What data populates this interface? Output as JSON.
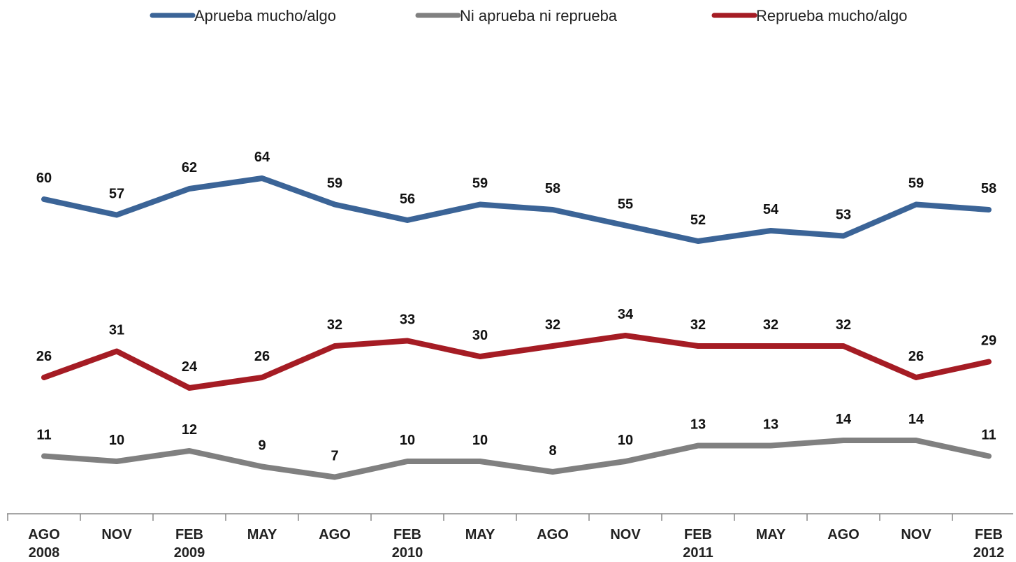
{
  "chart_data": {
    "type": "line",
    "categories": [
      "AGO\n2008",
      "NOV",
      "FEB\n2009",
      "MAY",
      "AGO",
      "FEB\n2010",
      "MAY",
      "AGO",
      "NOV",
      "FEB\n2011",
      "MAY",
      "AGO",
      "NOV",
      "FEB\n2012"
    ],
    "series": [
      {
        "name": "Aprueba mucho/algo",
        "color": "#3b6497",
        "values": [
          60,
          57,
          62,
          64,
          59,
          56,
          59,
          58,
          55,
          52,
          54,
          53,
          59,
          58
        ]
      },
      {
        "name": "Ni aprueba ni reprueba",
        "color": "#808080",
        "values": [
          11,
          10,
          12,
          9,
          7,
          10,
          10,
          8,
          10,
          13,
          13,
          14,
          14,
          11
        ]
      },
      {
        "name": "Reprueba mucho/algo",
        "color": "#a51c24",
        "values": [
          26,
          31,
          24,
          26,
          32,
          33,
          30,
          32,
          34,
          32,
          32,
          32,
          26,
          29
        ]
      }
    ],
    "ylim": [
      0,
      85
    ],
    "legend": "top"
  }
}
